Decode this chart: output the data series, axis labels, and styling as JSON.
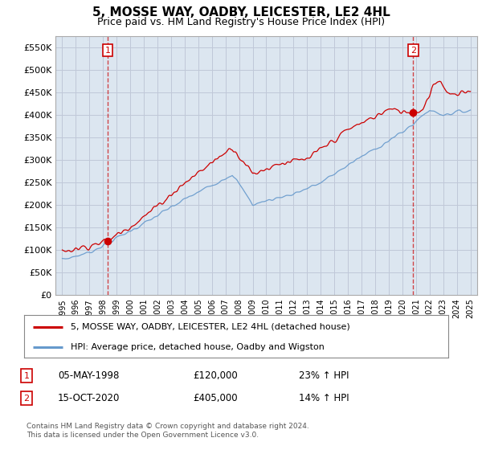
{
  "title": "5, MOSSE WAY, OADBY, LEICESTER, LE2 4HL",
  "subtitle": "Price paid vs. HM Land Registry's House Price Index (HPI)",
  "legend_label_red": "5, MOSSE WAY, OADBY, LEICESTER, LE2 4HL (detached house)",
  "legend_label_blue": "HPI: Average price, detached house, Oadby and Wigston",
  "footnote": "Contains HM Land Registry data © Crown copyright and database right 2024.\nThis data is licensed under the Open Government Licence v3.0.",
  "sale1_date": "05-MAY-1998",
  "sale1_price": "£120,000",
  "sale1_hpi": "23% ↑ HPI",
  "sale2_date": "15-OCT-2020",
  "sale2_price": "£405,000",
  "sale2_hpi": "14% ↑ HPI",
  "sale1_x": 1998.35,
  "sale1_y": 120000,
  "sale2_x": 2020.79,
  "sale2_y": 405000,
  "red_color": "#cc0000",
  "blue_color": "#6699cc",
  "plot_bg_color": "#dce6f0",
  "ylim_min": 0,
  "ylim_max": 575000,
  "xlim_min": 1994.5,
  "xlim_max": 2025.5,
  "yticks": [
    0,
    50000,
    100000,
    150000,
    200000,
    250000,
    300000,
    350000,
    400000,
    450000,
    500000,
    550000
  ],
  "ytick_labels": [
    "£0",
    "£50K",
    "£100K",
    "£150K",
    "£200K",
    "£250K",
    "£300K",
    "£350K",
    "£400K",
    "£450K",
    "£500K",
    "£550K"
  ],
  "xticks": [
    1995,
    1996,
    1997,
    1998,
    1999,
    2000,
    2001,
    2002,
    2003,
    2004,
    2005,
    2006,
    2007,
    2008,
    2009,
    2010,
    2011,
    2012,
    2013,
    2014,
    2015,
    2016,
    2017,
    2018,
    2019,
    2020,
    2021,
    2022,
    2023,
    2024,
    2025
  ],
  "background_color": "#ffffff",
  "grid_color": "#c0c8d8"
}
